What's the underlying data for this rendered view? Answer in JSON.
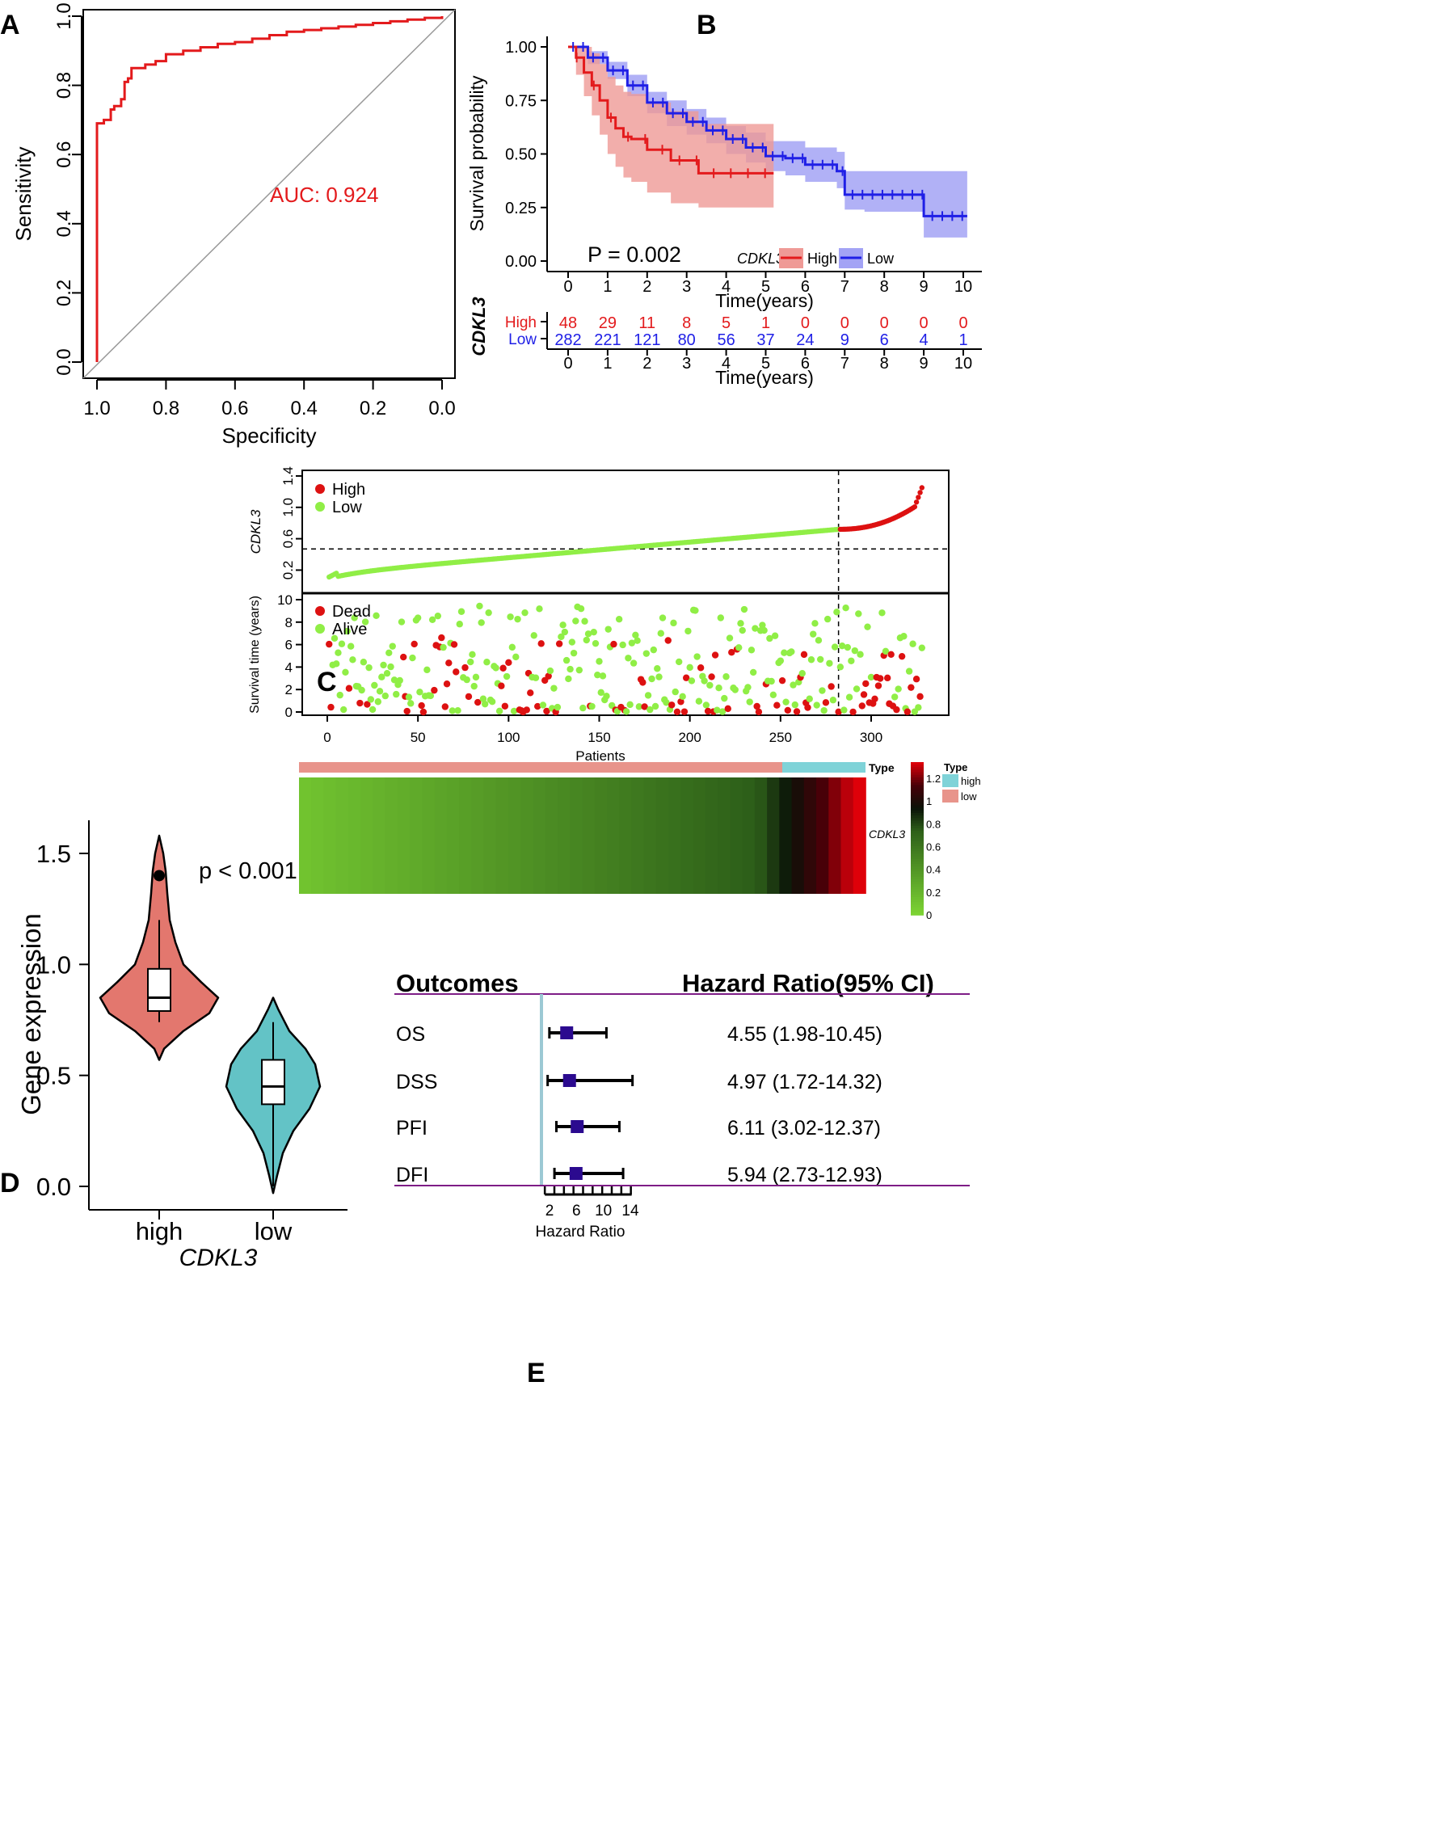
{
  "panel_labels": {
    "a": "A",
    "b": "B",
    "c": "C",
    "d": "D",
    "e": "E"
  },
  "colors": {
    "red": "#e31a1c",
    "blue": "#1f1fe6",
    "high_fill": "#ef9a96",
    "low_fill": "#a3a3f5",
    "green_pt": "#90ee46",
    "red_pt": "#dd1111",
    "violin_high": "#e3776e",
    "violin_low": "#63c3c6",
    "type_high": "#7fd3d8",
    "type_low": "#e8948b",
    "forest_box": "#2b0a8f",
    "forest_line": "#7e1d86",
    "forest_ref": "#9cc9d4"
  },
  "chart_data": [
    {
      "panel": "A",
      "type": "line",
      "xlabel": "Specificity",
      "ylabel": "Sensitivity",
      "xlim": [
        1.0,
        0.0
      ],
      "ylim": [
        0.0,
        1.0
      ],
      "xticks": [
        "1.0",
        "0.8",
        "0.6",
        "0.4",
        "0.2",
        "0.0"
      ],
      "yticks": [
        "0.0",
        "0.2",
        "0.4",
        "0.6",
        "0.8",
        "1.0"
      ],
      "annotation": "AUC: 0.924",
      "x": [
        1.0,
        1.0,
        0.99,
        0.98,
        0.96,
        0.95,
        0.93,
        0.92,
        0.91,
        0.9,
        0.88,
        0.86,
        0.83,
        0.8,
        0.75,
        0.7,
        0.65,
        0.6,
        0.55,
        0.5,
        0.45,
        0.4,
        0.35,
        0.3,
        0.25,
        0.2,
        0.15,
        0.1,
        0.05,
        0.0
      ],
      "y": [
        0.0,
        0.69,
        0.69,
        0.7,
        0.73,
        0.74,
        0.76,
        0.81,
        0.82,
        0.85,
        0.85,
        0.86,
        0.87,
        0.89,
        0.9,
        0.91,
        0.92,
        0.925,
        0.935,
        0.945,
        0.955,
        0.96,
        0.965,
        0.97,
        0.975,
        0.98,
        0.985,
        0.99,
        0.995,
        1.0
      ]
    },
    {
      "panel": "B",
      "type": "line",
      "title": "",
      "xlabel": "Time(years)",
      "ylabel": "Survival probability",
      "xlim": [
        0,
        10
      ],
      "ylim": [
        0,
        1
      ],
      "xticks": [
        "0",
        "1",
        "2",
        "3",
        "4",
        "5",
        "6",
        "7",
        "8",
        "9",
        "10"
      ],
      "yticks": [
        "0.00",
        "0.25",
        "0.50",
        "0.75",
        "1.00"
      ],
      "pvalue": "P = 0.002",
      "legend_title": "CDKL3",
      "series": [
        {
          "name": "High",
          "x": [
            0,
            0.2,
            0.4,
            0.6,
            0.8,
            1.0,
            1.2,
            1.4,
            1.6,
            2.0,
            2.6,
            3.3,
            4.0,
            5.2
          ],
          "y": [
            1.0,
            0.95,
            0.88,
            0.82,
            0.75,
            0.67,
            0.62,
            0.58,
            0.57,
            0.52,
            0.47,
            0.41,
            0.41,
            0.41
          ],
          "lower": [
            1.0,
            0.87,
            0.77,
            0.68,
            0.59,
            0.5,
            0.44,
            0.39,
            0.37,
            0.32,
            0.27,
            0.25,
            0.25,
            0.25
          ],
          "upper": [
            1.0,
            1.0,
            1.0,
            0.97,
            0.92,
            0.86,
            0.82,
            0.79,
            0.78,
            0.74,
            0.7,
            0.64,
            0.64,
            0.64
          ]
        },
        {
          "name": "Low",
          "x": [
            0,
            0.5,
            1.0,
            1.5,
            2.0,
            2.5,
            3.0,
            3.5,
            4.0,
            4.5,
            5.0,
            5.5,
            6.0,
            6.8,
            7.0,
            7.5,
            8.0,
            8.5,
            9.0,
            9.5,
            10.1
          ],
          "y": [
            1.0,
            0.95,
            0.89,
            0.82,
            0.74,
            0.69,
            0.65,
            0.61,
            0.57,
            0.53,
            0.49,
            0.48,
            0.45,
            0.42,
            0.31,
            0.31,
            0.31,
            0.31,
            0.21,
            0.21,
            0.21
          ],
          "lower": [
            1.0,
            0.92,
            0.85,
            0.77,
            0.69,
            0.63,
            0.59,
            0.55,
            0.5,
            0.46,
            0.42,
            0.4,
            0.37,
            0.34,
            0.24,
            0.23,
            0.23,
            0.23,
            0.11,
            0.11,
            0.11
          ],
          "upper": [
            1.0,
            0.98,
            0.93,
            0.87,
            0.79,
            0.75,
            0.71,
            0.67,
            0.63,
            0.6,
            0.56,
            0.56,
            0.53,
            0.51,
            0.42,
            0.42,
            0.42,
            0.42,
            0.42,
            0.42,
            0.42
          ]
        }
      ],
      "risk_table": {
        "title": "CDKL3",
        "xlabel": "Time(years)",
        "rows": [
          {
            "name": "High",
            "values": [
              48,
              29,
              11,
              8,
              5,
              1,
              0,
              0,
              0,
              0,
              0
            ]
          },
          {
            "name": "Low",
            "values": [
              282,
              221,
              121,
              80,
              56,
              37,
              24,
              9,
              6,
              4,
              1
            ]
          }
        ]
      }
    },
    {
      "panel": "C-top",
      "type": "scatter",
      "ylabel": "CDKL3",
      "xlim": [
        0,
        330
      ],
      "ylim": [
        0.05,
        1.42
      ],
      "yticks": [
        "0.2",
        "0.6",
        "1.0",
        "1.4"
      ],
      "cutoff_patient": 282,
      "threshold": 0.47,
      "series": [
        {
          "name": "High"
        },
        {
          "name": "Low"
        }
      ]
    },
    {
      "panel": "C-mid",
      "type": "scatter",
      "ylabel": "Survival time (years)",
      "xlabel": "Patients",
      "xlim": [
        0,
        330
      ],
      "ylim": [
        0,
        10
      ],
      "xticks": [
        "0",
        "50",
        "100",
        "150",
        "200",
        "250",
        "300"
      ],
      "yticks": [
        "0",
        "2",
        "4",
        "6",
        "8",
        "10"
      ],
      "series": [
        {
          "name": "Dead"
        },
        {
          "name": "Alive"
        }
      ]
    },
    {
      "panel": "C-heatmap",
      "type": "heatmap",
      "row_label": "CDKL3",
      "annotation_label": "Type",
      "colorbar_ticks": [
        "0",
        "0.2",
        "0.4",
        "0.6",
        "0.8",
        "1",
        "1.2"
      ],
      "type_legend": {
        "title": "Type",
        "items": [
          "high",
          "low"
        ]
      }
    },
    {
      "panel": "D",
      "type": "violin",
      "xlabel": "CDKL3",
      "ylabel": "Gene expression",
      "categories": [
        "high",
        "low"
      ],
      "ylim": [
        0.0,
        1.65
      ],
      "yticks": [
        "0.0",
        "0.5",
        "1.0",
        "1.5"
      ],
      "pvalue": "p < 0.001",
      "boxes": [
        {
          "min": 0.74,
          "q1": 0.79,
          "median": 0.85,
          "q3": 0.98,
          "max": 1.2,
          "outlier": 1.4
        },
        {
          "min": 0.0,
          "q1": 0.37,
          "median": 0.45,
          "q3": 0.57,
          "max": 0.74
        }
      ]
    },
    {
      "panel": "E",
      "type": "table",
      "headers": [
        "Outcomes",
        "Hazard Ratio(95% CI)"
      ],
      "xlabel": "Hazard Ratio",
      "xticks": [
        "2",
        "6",
        "10",
        "14"
      ],
      "rows": [
        {
          "label": "OS",
          "hr": 4.55,
          "lo": 1.98,
          "hi": 10.45,
          "text": "4.55 (1.98-10.45)"
        },
        {
          "label": "DSS",
          "hr": 4.97,
          "lo": 1.72,
          "hi": 14.32,
          "text": "4.97 (1.72-14.32)"
        },
        {
          "label": "PFI",
          "hr": 6.11,
          "lo": 3.02,
          "hi": 12.37,
          "text": "6.11 (3.02-12.37)"
        },
        {
          "label": "DFI",
          "hr": 5.94,
          "lo": 2.73,
          "hi": 12.93,
          "text": "5.94 (2.73-12.93)"
        }
      ]
    }
  ]
}
